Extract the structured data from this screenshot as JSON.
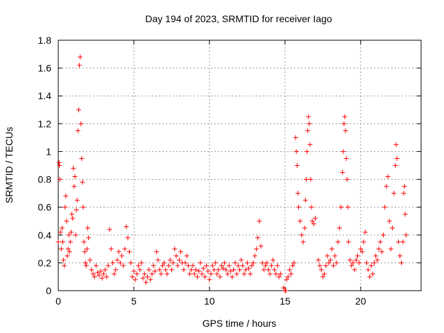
{
  "chart_data": {
    "type": "scatter",
    "title": "Day 194 of 2023, SRMTID for receiver Iago",
    "xlabel": "GPS time / hours",
    "ylabel": "SRMTID / TECUs",
    "xlim": [
      0,
      24
    ],
    "ylim": [
      0,
      1.8
    ],
    "x_ticks": [
      0,
      5,
      10,
      15,
      20
    ],
    "x_tick_labels": [
      "0",
      "5",
      "10",
      "15",
      "20"
    ],
    "y_ticks": [
      0,
      0.2,
      0.4,
      0.6,
      0.8,
      1.0,
      1.2,
      1.4,
      1.6,
      1.8
    ],
    "y_tick_labels": [
      "0",
      "0.2",
      "0.4",
      "0.6",
      "0.8",
      "1",
      "1.2",
      "1.4",
      "1.6",
      "1.8"
    ],
    "grid": true,
    "marker": "+",
    "marker_color": "#ff0000",
    "series": [
      {
        "name": "SRMTID",
        "points": [
          [
            0.0,
            0.35
          ],
          [
            0.05,
            0.92
          ],
          [
            0.08,
            0.9
          ],
          [
            0.1,
            0.8
          ],
          [
            0.15,
            0.42
          ],
          [
            0.2,
            0.3
          ],
          [
            0.25,
            0.45
          ],
          [
            0.3,
            0.35
          ],
          [
            0.35,
            0.22
          ],
          [
            0.4,
            0.18
          ],
          [
            0.45,
            0.6
          ],
          [
            0.5,
            0.68
          ],
          [
            0.55,
            0.5
          ],
          [
            0.6,
            0.25
          ],
          [
            0.65,
            0.3
          ],
          [
            0.7,
            0.4
          ],
          [
            0.75,
            0.28
          ],
          [
            0.8,
            0.35
          ],
          [
            0.85,
            0.42
          ],
          [
            0.9,
            0.55
          ],
          [
            0.95,
            0.52
          ],
          [
            1.0,
            0.88
          ],
          [
            1.05,
            0.75
          ],
          [
            1.1,
            0.82
          ],
          [
            1.15,
            0.4
          ],
          [
            1.2,
            0.58
          ],
          [
            1.25,
            0.65
          ],
          [
            1.3,
            1.15
          ],
          [
            1.35,
            1.3
          ],
          [
            1.4,
            1.62
          ],
          [
            1.45,
            1.68
          ],
          [
            1.5,
            1.2
          ],
          [
            1.55,
            0.95
          ],
          [
            1.6,
            0.78
          ],
          [
            1.65,
            0.6
          ],
          [
            1.7,
            0.35
          ],
          [
            1.75,
            0.28
          ],
          [
            1.8,
            0.2
          ],
          [
            1.85,
            0.18
          ],
          [
            1.9,
            0.3
          ],
          [
            1.95,
            0.45
          ],
          [
            2.0,
            0.38
          ],
          [
            2.1,
            0.22
          ],
          [
            2.2,
            0.15
          ],
          [
            2.3,
            0.12
          ],
          [
            2.4,
            0.1
          ],
          [
            2.5,
            0.18
          ],
          [
            2.6,
            0.13
          ],
          [
            2.7,
            0.11
          ],
          [
            2.8,
            0.14
          ],
          [
            2.9,
            0.09
          ],
          [
            3.0,
            0.12
          ],
          [
            3.1,
            0.15
          ],
          [
            3.2,
            0.1
          ],
          [
            3.3,
            0.18
          ],
          [
            3.4,
            0.44
          ],
          [
            3.5,
            0.3
          ],
          [
            3.6,
            0.2
          ],
          [
            3.7,
            0.12
          ],
          [
            3.8,
            0.15
          ],
          [
            3.9,
            0.22
          ],
          [
            4.0,
            0.28
          ],
          [
            4.1,
            0.2
          ],
          [
            4.2,
            0.25
          ],
          [
            4.3,
            0.18
          ],
          [
            4.4,
            0.3
          ],
          [
            4.5,
            0.46
          ],
          [
            4.6,
            0.38
          ],
          [
            4.7,
            0.28
          ],
          [
            4.8,
            0.2
          ],
          [
            4.9,
            0.1
          ],
          [
            5.0,
            0.14
          ],
          [
            5.1,
            0.08
          ],
          [
            5.2,
            0.12
          ],
          [
            5.3,
            0.18
          ],
          [
            5.4,
            0.15
          ],
          [
            5.5,
            0.2
          ],
          [
            5.6,
            0.09
          ],
          [
            5.7,
            0.12
          ],
          [
            5.8,
            0.06
          ],
          [
            5.9,
            0.1
          ],
          [
            6.0,
            0.15
          ],
          [
            6.1,
            0.08
          ],
          [
            6.2,
            0.12
          ],
          [
            6.3,
            0.18
          ],
          [
            6.4,
            0.14
          ],
          [
            6.5,
            0.28
          ],
          [
            6.6,
            0.22
          ],
          [
            6.7,
            0.15
          ],
          [
            6.8,
            0.12
          ],
          [
            6.9,
            0.18
          ],
          [
            7.0,
            0.2
          ],
          [
            7.1,
            0.15
          ],
          [
            7.2,
            0.12
          ],
          [
            7.3,
            0.18
          ],
          [
            7.4,
            0.22
          ],
          [
            7.5,
            0.15
          ],
          [
            7.6,
            0.2
          ],
          [
            7.7,
            0.3
          ],
          [
            7.8,
            0.25
          ],
          [
            7.9,
            0.18
          ],
          [
            8.0,
            0.22
          ],
          [
            8.1,
            0.28
          ],
          [
            8.2,
            0.2
          ],
          [
            8.3,
            0.15
          ],
          [
            8.4,
            0.2
          ],
          [
            8.5,
            0.25
          ],
          [
            8.6,
            0.18
          ],
          [
            8.7,
            0.12
          ],
          [
            8.8,
            0.15
          ],
          [
            8.9,
            0.18
          ],
          [
            9.0,
            0.12
          ],
          [
            9.1,
            0.15
          ],
          [
            9.2,
            0.1
          ],
          [
            9.3,
            0.14
          ],
          [
            9.4,
            0.2
          ],
          [
            9.5,
            0.12
          ],
          [
            9.6,
            0.16
          ],
          [
            9.7,
            0.1
          ],
          [
            9.8,
            0.18
          ],
          [
            9.9,
            0.14
          ],
          [
            10.0,
            0.08
          ],
          [
            10.1,
            0.12
          ],
          [
            10.2,
            0.18
          ],
          [
            10.3,
            0.15
          ],
          [
            10.4,
            0.2
          ],
          [
            10.5,
            0.12
          ],
          [
            10.6,
            0.15
          ],
          [
            10.7,
            0.1
          ],
          [
            10.8,
            0.18
          ],
          [
            10.9,
            0.16
          ],
          [
            11.0,
            0.2
          ],
          [
            11.1,
            0.15
          ],
          [
            11.2,
            0.12
          ],
          [
            11.3,
            0.18
          ],
          [
            11.4,
            0.14
          ],
          [
            11.5,
            0.1
          ],
          [
            11.6,
            0.15
          ],
          [
            11.7,
            0.2
          ],
          [
            11.8,
            0.12
          ],
          [
            11.9,
            0.18
          ],
          [
            12.0,
            0.15
          ],
          [
            12.1,
            0.22
          ],
          [
            12.2,
            0.18
          ],
          [
            12.3,
            0.12
          ],
          [
            12.4,
            0.15
          ],
          [
            12.5,
            0.2
          ],
          [
            12.6,
            0.16
          ],
          [
            12.7,
            0.12
          ],
          [
            12.8,
            0.18
          ],
          [
            12.9,
            0.2
          ],
          [
            13.0,
            0.25
          ],
          [
            13.1,
            0.3
          ],
          [
            13.2,
            0.38
          ],
          [
            13.3,
            0.5
          ],
          [
            13.4,
            0.32
          ],
          [
            13.5,
            0.2
          ],
          [
            13.6,
            0.15
          ],
          [
            13.7,
            0.18
          ],
          [
            13.8,
            0.2
          ],
          [
            13.9,
            0.15
          ],
          [
            14.0,
            0.12
          ],
          [
            14.1,
            0.18
          ],
          [
            14.2,
            0.22
          ],
          [
            14.3,
            0.15
          ],
          [
            14.4,
            0.12
          ],
          [
            14.5,
            0.18
          ],
          [
            14.6,
            0.1
          ],
          [
            14.7,
            0.12
          ],
          [
            14.9,
            0.02
          ],
          [
            15.0,
            0.0
          ],
          [
            15.05,
            0.0
          ],
          [
            15.1,
            0.08
          ],
          [
            15.2,
            0.1
          ],
          [
            15.3,
            0.15
          ],
          [
            15.4,
            0.12
          ],
          [
            15.5,
            0.18
          ],
          [
            15.6,
            0.2
          ],
          [
            15.7,
            1.1
          ],
          [
            15.75,
            1.0
          ],
          [
            15.8,
            0.9
          ],
          [
            15.85,
            0.7
          ],
          [
            15.9,
            0.6
          ],
          [
            16.0,
            0.5
          ],
          [
            16.1,
            0.4
          ],
          [
            16.2,
            0.35
          ],
          [
            16.3,
            0.45
          ],
          [
            16.35,
            0.65
          ],
          [
            16.4,
            0.8
          ],
          [
            16.45,
            1.0
          ],
          [
            16.5,
            1.15
          ],
          [
            16.55,
            1.25
          ],
          [
            16.6,
            1.2
          ],
          [
            16.65,
            1.05
          ],
          [
            16.7,
            0.8
          ],
          [
            16.75,
            0.6
          ],
          [
            16.8,
            0.5
          ],
          [
            16.9,
            0.48
          ],
          [
            17.0,
            0.52
          ],
          [
            17.2,
            0.22
          ],
          [
            17.3,
            0.18
          ],
          [
            17.4,
            0.15
          ],
          [
            17.5,
            0.1
          ],
          [
            17.6,
            0.12
          ],
          [
            17.7,
            0.18
          ],
          [
            17.8,
            0.25
          ],
          [
            17.9,
            0.2
          ],
          [
            18.0,
            0.22
          ],
          [
            18.1,
            0.3
          ],
          [
            18.2,
            0.18
          ],
          [
            18.3,
            0.25
          ],
          [
            18.4,
            0.2
          ],
          [
            18.5,
            0.35
          ],
          [
            18.6,
            0.45
          ],
          [
            18.7,
            0.6
          ],
          [
            18.8,
            0.85
          ],
          [
            18.85,
            1.0
          ],
          [
            18.9,
            1.2
          ],
          [
            18.95,
            1.25
          ],
          [
            19.0,
            1.15
          ],
          [
            19.05,
            0.95
          ],
          [
            19.1,
            0.8
          ],
          [
            19.15,
            0.6
          ],
          [
            19.2,
            0.35
          ],
          [
            19.3,
            0.22
          ],
          [
            19.4,
            0.18
          ],
          [
            19.5,
            0.2
          ],
          [
            19.6,
            0.15
          ],
          [
            19.7,
            0.22
          ],
          [
            19.8,
            0.25
          ],
          [
            19.9,
            0.2
          ],
          [
            20.0,
            0.3
          ],
          [
            20.1,
            0.28
          ],
          [
            20.2,
            0.35
          ],
          [
            20.3,
            0.42
          ],
          [
            20.4,
            0.2
          ],
          [
            20.5,
            0.15
          ],
          [
            20.6,
            0.1
          ],
          [
            20.7,
            0.18
          ],
          [
            20.8,
            0.12
          ],
          [
            20.9,
            0.2
          ],
          [
            21.0,
            0.25
          ],
          [
            21.1,
            0.22
          ],
          [
            21.2,
            0.3
          ],
          [
            21.3,
            0.35
          ],
          [
            21.4,
            0.28
          ],
          [
            21.5,
            0.4
          ],
          [
            21.6,
            0.6
          ],
          [
            21.7,
            0.75
          ],
          [
            21.8,
            0.82
          ],
          [
            21.9,
            0.5
          ],
          [
            22.0,
            0.3
          ],
          [
            22.1,
            0.45
          ],
          [
            22.2,
            0.7
          ],
          [
            22.3,
            0.9
          ],
          [
            22.35,
            1.05
          ],
          [
            22.4,
            0.95
          ],
          [
            22.5,
            0.35
          ],
          [
            22.6,
            0.25
          ],
          [
            22.7,
            0.2
          ],
          [
            22.8,
            0.35
          ],
          [
            22.85,
            0.7
          ],
          [
            22.9,
            0.75
          ],
          [
            22.95,
            0.55
          ],
          [
            23.0,
            0.4
          ]
        ]
      }
    ]
  }
}
